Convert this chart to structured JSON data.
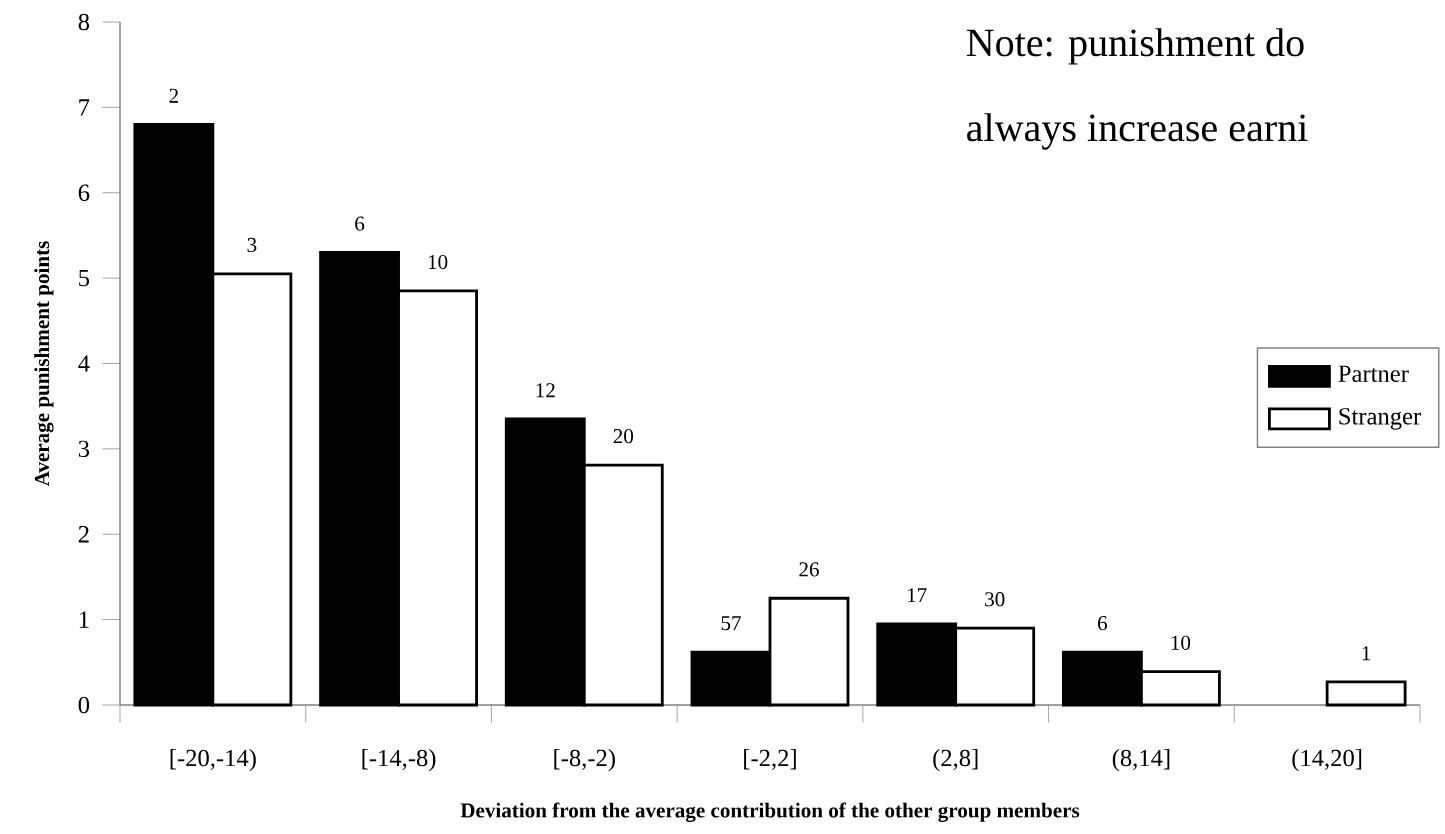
{
  "chart_data": {
    "type": "bar",
    "xlabel": "Deviation from the average contribution of the other group members",
    "ylabel": "Average punishment points",
    "categories": [
      "[-20,-14)",
      "[-14,-8)",
      "[-8,-2)",
      "[-2,2]",
      "(2,8]",
      "(8,14]",
      "(14,20]"
    ],
    "series": [
      {
        "name": "Partner",
        "color": "#000000",
        "values": [
          6.8,
          5.3,
          3.35,
          0.62,
          0.95,
          0.62,
          null
        ]
      },
      {
        "name": "Stranger",
        "color": "#ffffff",
        "values": [
          5.05,
          4.85,
          2.81,
          1.25,
          0.9,
          0.39,
          0.27
        ]
      }
    ],
    "ylim": [
      0,
      8
    ],
    "yticks": [
      0,
      1,
      2,
      3,
      4,
      5,
      6,
      7,
      8
    ],
    "legend": "right",
    "annotations": [
      "Note: punishment do",
      "always increase earni",
      {
        "text": "2",
        "x": "[-20,-14)",
        "y": 6.8
      },
      {
        "text": "3",
        "x": "[-20,-14)",
        "y": 5.05
      },
      {
        "text": "6",
        "x": "[-14,-8)",
        "y": 5.3
      },
      {
        "text": "10",
        "x": "[-14,-8)",
        "y": 4.85
      },
      {
        "text": "12",
        "x": "[-8,-2)",
        "y": 3.35
      },
      {
        "text": "20",
        "x": "[-8,-2)",
        "y": 2.81
      },
      {
        "text": "57",
        "x": "[-2,2]",
        "y": 0.62
      },
      {
        "text": "26",
        "x": "[-2,2]",
        "y": 1.25
      },
      {
        "text": "17",
        "x": "(2,8]",
        "y": 0.95
      },
      {
        "text": "30",
        "x": "(2,8]",
        "y": 0.9
      },
      {
        "text": "6",
        "x": "(8,14]",
        "y": 0.62
      },
      {
        "text": "10",
        "x": "(8,14]",
        "y": 0.39
      },
      {
        "text": "1",
        "x": "(14,20]",
        "y": 0.27
      }
    ]
  }
}
